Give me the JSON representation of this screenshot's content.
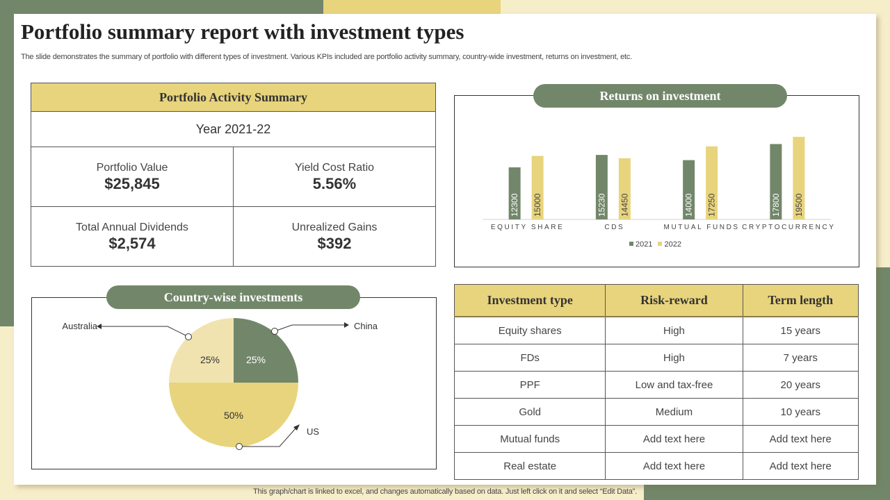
{
  "title": "Portfolio summary report with investment types",
  "subtitle": "The slide demonstrates the summary of portfolio with different types of investment. Various KPIs included are portfolio activity  summary, country-wide investment, returns on investment, etc.",
  "colors": {
    "green": "#72876a",
    "yellow": "#e8d47c",
    "light_yellow": "#f0e3b0",
    "cream": "#f6edc9"
  },
  "portfolio_summary": {
    "heading": "Portfolio Activity Summary",
    "year": "Year 2021-22",
    "kpis": [
      {
        "label": "Portfolio Value",
        "value": "$25,845"
      },
      {
        "label": "Yield Cost Ratio",
        "value": "5.56%"
      },
      {
        "label": "Total Annual Dividends",
        "value": "$2,574"
      },
      {
        "label": "Unrealized Gains",
        "value": "$392"
      }
    ]
  },
  "chart_data": [
    {
      "type": "bar",
      "title": "Returns on investment",
      "categories": [
        "EQUITY SHARE",
        "CDS",
        "MUTUAL FUNDS",
        "CRYPTOCURRENCY"
      ],
      "series": [
        {
          "name": "2021",
          "color": "#72876a",
          "values": [
            12300,
            15230,
            14000,
            17800
          ]
        },
        {
          "name": "2022",
          "color": "#e8d47c",
          "values": [
            15000,
            14450,
            17250,
            19500
          ]
        }
      ],
      "ylim": [
        0,
        20000
      ],
      "grid": false,
      "legend": "bottom",
      "data_labels": "inside-rotated"
    },
    {
      "type": "pie",
      "title": "Country-wise investments",
      "slices": [
        {
          "label": "China",
          "value": 25,
          "display": "25%",
          "color": "#72876a"
        },
        {
          "label": "US",
          "value": 50,
          "display": "50%",
          "color": "#e8d47c"
        },
        {
          "label": "Australia",
          "value": 25,
          "display": "25%",
          "color": "#f0e3b0"
        }
      ]
    }
  ],
  "investment_table": {
    "headers": [
      "Investment type",
      "Risk-reward",
      "Term length"
    ],
    "rows": [
      [
        "Equity shares",
        "High",
        "15 years"
      ],
      [
        "FDs",
        "High",
        "7 years"
      ],
      [
        "PPF",
        "Low and tax-free",
        "20 years"
      ],
      [
        "Gold",
        "Medium",
        "10 years"
      ],
      [
        "Mutual funds",
        "Add text here",
        "Add text here"
      ],
      [
        "Real estate",
        "Add text here",
        "Add text here"
      ]
    ]
  },
  "footer": "This graph/chart is linked to excel,  and changes automatically based on data. Just left click on it and select “Edit Data”."
}
